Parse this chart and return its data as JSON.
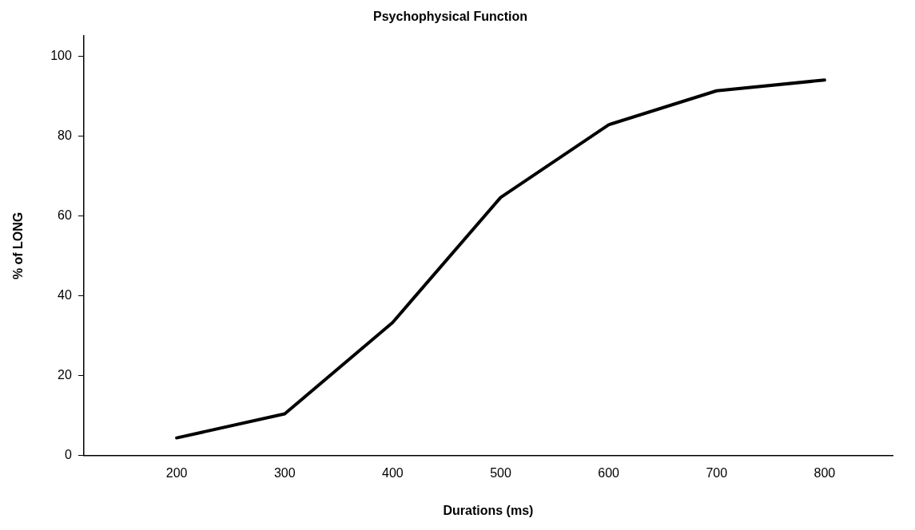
{
  "chart_data": {
    "type": "line",
    "title": "Psychophysical Function",
    "xlabel": "Durations (ms)",
    "ylabel": "% of LONG",
    "x": [
      200,
      300,
      400,
      500,
      600,
      700,
      800
    ],
    "series": [
      {
        "color": "#000000",
        "values": [
          4.4,
          10.4,
          33.3,
          64.6,
          82.8,
          91.3,
          94.0
        ]
      }
    ],
    "xlim": [
      114,
      863
    ],
    "xticks": [
      200,
      300,
      400,
      500,
      600,
      700,
      800
    ],
    "ylim": [
      0,
      105
    ],
    "yticks": [
      0,
      20,
      40,
      60,
      80,
      100
    ],
    "grid": false,
    "legend": false,
    "marker": "none",
    "line_style": "solid"
  }
}
